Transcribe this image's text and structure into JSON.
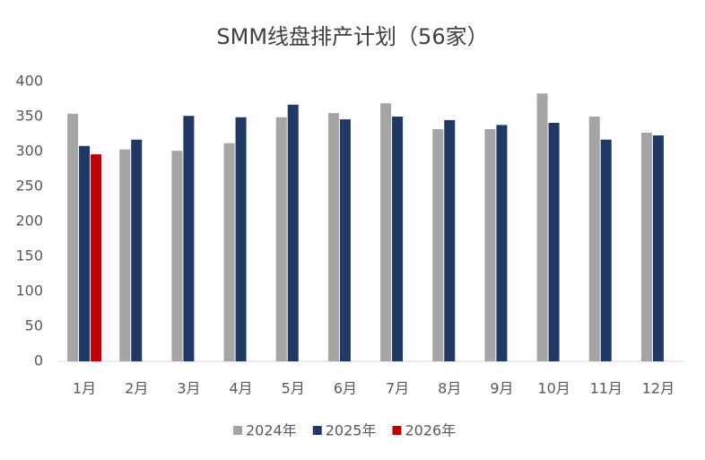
{
  "chart_data": {
    "type": "bar",
    "title": "SMM线盘排产计划（56家）",
    "categories": [
      "1月",
      "2月",
      "3月",
      "4月",
      "5月",
      "6月",
      "7月",
      "8月",
      "9月",
      "10月",
      "11月",
      "12月"
    ],
    "series": [
      {
        "name": "2024年",
        "color": "#a5a5a5",
        "values": [
          354,
          303,
          301,
          312,
          349,
          355,
          369,
          332,
          332,
          383,
          350,
          327
        ]
      },
      {
        "name": "2025年",
        "color": "#203864",
        "values": [
          308,
          317,
          351,
          349,
          367,
          346,
          350,
          345,
          338,
          341,
          317,
          323
        ]
      },
      {
        "name": "2026年",
        "color": "#c00000",
        "values": [
          296,
          null,
          null,
          null,
          null,
          null,
          null,
          null,
          null,
          null,
          null,
          null
        ]
      }
    ],
    "ylim": [
      0,
      400
    ],
    "yticks": [
      0,
      50,
      100,
      150,
      200,
      250,
      300,
      350,
      400
    ],
    "grid": false
  }
}
